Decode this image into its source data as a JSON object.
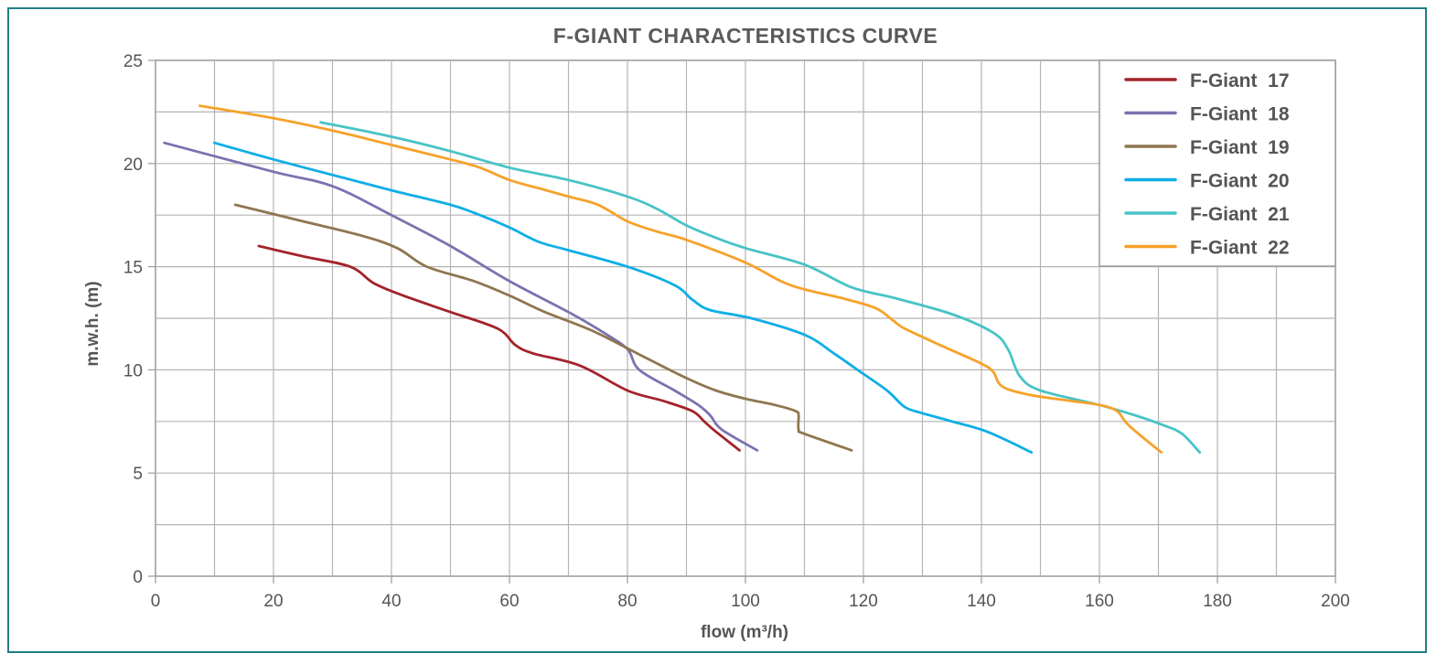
{
  "chart_data": {
    "type": "line",
    "title": "F-GIANT  CHARACTERISTICS CURVE",
    "xlabel": "flow (m³/h)",
    "ylabel": "m.w.h. (m)",
    "xlim": [
      0,
      200
    ],
    "ylim": [
      0,
      25
    ],
    "x_ticks": [
      "0",
      "20",
      "40",
      "60",
      "80",
      "100",
      "120",
      "140",
      "160",
      "180",
      "200"
    ],
    "y_ticks": [
      "0",
      "5",
      "10",
      "15",
      "20",
      "25"
    ],
    "grid": true,
    "legend_position": "top-right",
    "series": [
      {
        "name": "F-Giant  17",
        "color": "#a3232a",
        "points": [
          [
            17.5,
            16
          ],
          [
            25,
            15.5
          ],
          [
            33,
            15
          ],
          [
            37,
            14.2
          ],
          [
            42,
            13.6
          ],
          [
            50,
            12.8
          ],
          [
            58,
            12
          ],
          [
            61,
            11.2
          ],
          [
            64,
            10.8
          ],
          [
            72,
            10.2
          ],
          [
            80,
            9
          ],
          [
            86,
            8.5
          ],
          [
            91,
            8
          ],
          [
            93,
            7.5
          ],
          [
            95,
            7
          ],
          [
            99,
            6.1
          ]
        ]
      },
      {
        "name": "F-Giant  18",
        "color": "#7a73b0",
        "points": [
          [
            1.5,
            21
          ],
          [
            20,
            19.6
          ],
          [
            30,
            18.9
          ],
          [
            40,
            17.5
          ],
          [
            50,
            16
          ],
          [
            60,
            14.3
          ],
          [
            70,
            12.8
          ],
          [
            76,
            11.8
          ],
          [
            80,
            11
          ],
          [
            82,
            10
          ],
          [
            88,
            9
          ],
          [
            92,
            8.3
          ],
          [
            94,
            7.8
          ],
          [
            96,
            7.1
          ],
          [
            102,
            6.1
          ]
        ]
      },
      {
        "name": "F-Giant  19",
        "color": "#8f7650",
        "points": [
          [
            13.5,
            18
          ],
          [
            25,
            17.2
          ],
          [
            35,
            16.5
          ],
          [
            41,
            15.9
          ],
          [
            46,
            15
          ],
          [
            54,
            14.3
          ],
          [
            60,
            13.6
          ],
          [
            66,
            12.8
          ],
          [
            74,
            11.9
          ],
          [
            83,
            10.6
          ],
          [
            90,
            9.6
          ],
          [
            95,
            9
          ],
          [
            100,
            8.6
          ],
          [
            105,
            8.3
          ],
          [
            108.5,
            8
          ],
          [
            109,
            7.8
          ],
          [
            109,
            7.1
          ],
          [
            110,
            6.9
          ],
          [
            118,
            6.1
          ]
        ]
      },
      {
        "name": "F-Giant  20",
        "color": "#0faee6",
        "points": [
          [
            10,
            21
          ],
          [
            20,
            20.2
          ],
          [
            32,
            19.3
          ],
          [
            40,
            18.7
          ],
          [
            50,
            18
          ],
          [
            55,
            17.5
          ],
          [
            60,
            16.9
          ],
          [
            65,
            16.2
          ],
          [
            70,
            15.8
          ],
          [
            80,
            15
          ],
          [
            88,
            14.1
          ],
          [
            91,
            13.4
          ],
          [
            94,
            12.9
          ],
          [
            101,
            12.5
          ],
          [
            110,
            11.7
          ],
          [
            115,
            10.8
          ],
          [
            119,
            10
          ],
          [
            124,
            9
          ],
          [
            127,
            8.2
          ],
          [
            130,
            7.9
          ],
          [
            135,
            7.5
          ],
          [
            141,
            7
          ],
          [
            148.5,
            6
          ]
        ]
      },
      {
        "name": "F-Giant  21",
        "color": "#48c3c6",
        "points": [
          [
            28,
            22
          ],
          [
            40,
            21.3
          ],
          [
            50,
            20.6
          ],
          [
            60,
            19.8
          ],
          [
            70,
            19.2
          ],
          [
            80,
            18.4
          ],
          [
            85,
            17.8
          ],
          [
            90,
            17
          ],
          [
            95,
            16.4
          ],
          [
            100,
            15.9
          ],
          [
            110,
            15.1
          ],
          [
            118,
            14
          ],
          [
            125,
            13.5
          ],
          [
            135,
            12.7
          ],
          [
            142,
            11.8
          ],
          [
            144.5,
            11
          ],
          [
            146.5,
            9.7
          ],
          [
            150,
            9
          ],
          [
            160,
            8.3
          ],
          [
            166,
            7.8
          ],
          [
            171,
            7.3
          ],
          [
            174,
            6.9
          ],
          [
            177,
            6
          ]
        ]
      },
      {
        "name": "F-Giant  22",
        "color": "#f6a22a",
        "points": [
          [
            7.5,
            22.8
          ],
          [
            20,
            22.2
          ],
          [
            30,
            21.6
          ],
          [
            40,
            20.9
          ],
          [
            50,
            20.2
          ],
          [
            55,
            19.8
          ],
          [
            60,
            19.2
          ],
          [
            65,
            18.8
          ],
          [
            70,
            18.4
          ],
          [
            75,
            18
          ],
          [
            80,
            17.2
          ],
          [
            85,
            16.7
          ],
          [
            90,
            16.3
          ],
          [
            100,
            15.2
          ],
          [
            106,
            14.3
          ],
          [
            110,
            13.9
          ],
          [
            116,
            13.5
          ],
          [
            122,
            13
          ],
          [
            125,
            12.4
          ],
          [
            127,
            12
          ],
          [
            133,
            11.2
          ],
          [
            140,
            10.3
          ],
          [
            142,
            9.9
          ],
          [
            143.5,
            9.2
          ],
          [
            148,
            8.8
          ],
          [
            155,
            8.5
          ],
          [
            160,
            8.3
          ],
          [
            163,
            8
          ],
          [
            165,
            7.3
          ],
          [
            170.5,
            6
          ]
        ]
      }
    ]
  }
}
